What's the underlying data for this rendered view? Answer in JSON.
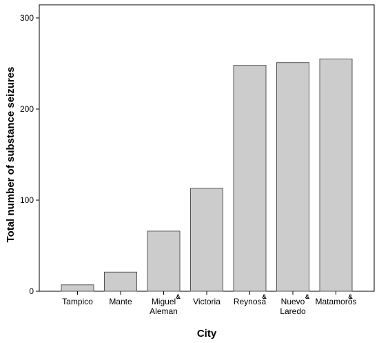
{
  "chart_data": {
    "type": "bar",
    "categories": [
      {
        "lines": [
          "Tampico"
        ],
        "marker": ""
      },
      {
        "lines": [
          "Mante"
        ],
        "marker": ""
      },
      {
        "lines": [
          "Miguel",
          "Aleman"
        ],
        "marker": "&"
      },
      {
        "lines": [
          "Victoria"
        ],
        "marker": ""
      },
      {
        "lines": [
          "Reynosa"
        ],
        "marker": "&"
      },
      {
        "lines": [
          "Nuevo",
          "Laredo"
        ],
        "marker": "&"
      },
      {
        "lines": [
          "Matamoros"
        ],
        "marker": "&"
      }
    ],
    "values": [
      7,
      21,
      66,
      113,
      248,
      251,
      255
    ],
    "xlabel": "City",
    "ylabel": "Total number of substance seizures",
    "ylim": [
      0,
      300
    ],
    "yticks": [
      "0",
      "100",
      "200",
      "300"
    ],
    "grid": false,
    "bar_color": "#cccccc",
    "bar_stroke": "#555555"
  }
}
